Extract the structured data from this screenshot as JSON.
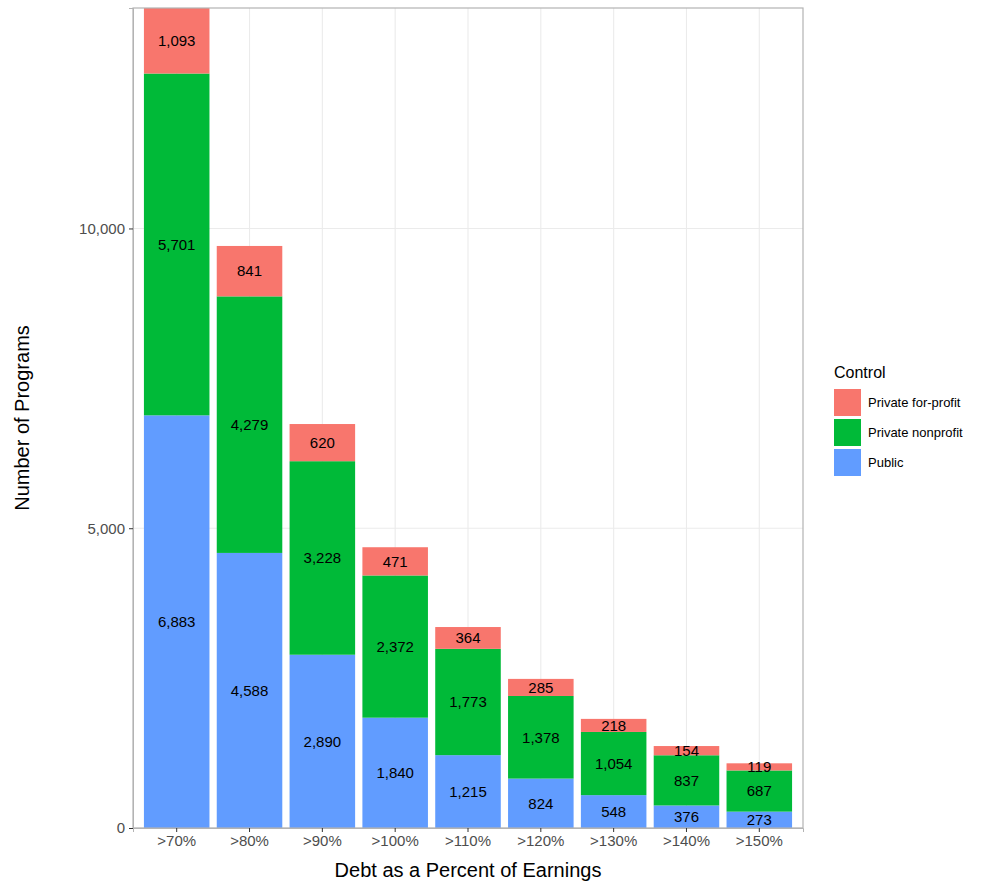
{
  "chart_data": {
    "type": "bar",
    "stacked": true,
    "data_labels": true,
    "grid": true,
    "legend": "right",
    "x_label": "Debt as a Percent of Earnings",
    "y_label": "Number of Programs",
    "legend_title": "Control",
    "categories": [
      ">70%",
      ">80%",
      ">90%",
      ">100%",
      ">110%",
      ">120%",
      ">130%",
      ">140%",
      ">150%"
    ],
    "series": [
      {
        "name": "Public",
        "color": "#619CFF",
        "values": [
          6883,
          4588,
          2890,
          1840,
          1215,
          824,
          548,
          376,
          273
        ],
        "value_labels": [
          "6,883",
          "4,588",
          "2,890",
          "1,840",
          "1,215",
          "824",
          "548",
          "376",
          "273"
        ]
      },
      {
        "name": "Private nonprofit",
        "color": "#00BA38",
        "values": [
          5701,
          4279,
          3228,
          2372,
          1773,
          1378,
          1054,
          837,
          687
        ],
        "value_labels": [
          "5,701",
          "4,279",
          "3,228",
          "2,372",
          "1,773",
          "1,378",
          "1,054",
          "837",
          "687"
        ]
      },
      {
        "name": "Private for-profit",
        "color": "#F8766D",
        "values": [
          1093,
          841,
          620,
          471,
          364,
          285,
          218,
          154,
          119
        ],
        "value_labels": [
          "1,093",
          "841",
          "620",
          "471",
          "364",
          "285",
          "218",
          "154",
          "119"
        ]
      }
    ],
    "ylim": [
      0,
      13677
    ],
    "yticks": [
      0,
      {
        "value": 5000,
        "label": "5,000"
      },
      {
        "value": 10000,
        "label": "10,000"
      }
    ]
  }
}
